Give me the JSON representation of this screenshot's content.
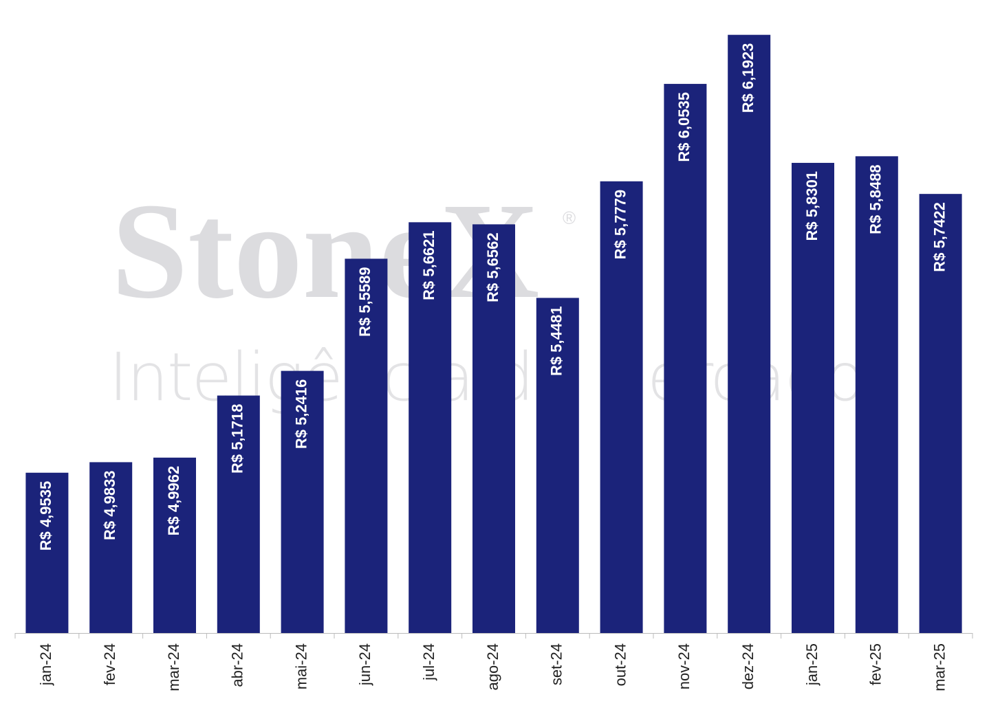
{
  "watermark": {
    "brand": "StoneX",
    "mark": "®",
    "tagline": "Inteligência de Mercado"
  },
  "chart_data": {
    "type": "bar",
    "categories": [
      "jan-24",
      "fev-24",
      "mar-24",
      "abr-24",
      "mai-24",
      "jun-24",
      "jul-24",
      "ago-24",
      "set-24",
      "out-24",
      "nov-24",
      "dez-24",
      "jan-25",
      "fev-25",
      "mar-25"
    ],
    "values": [
      4.9535,
      4.9833,
      4.9962,
      5.1718,
      5.2416,
      5.5589,
      5.6621,
      5.6562,
      5.4481,
      5.7779,
      6.0535,
      6.1923,
      5.8301,
      5.8488,
      5.7422
    ],
    "value_labels": [
      "R$ 4,9535",
      "R$ 4,9833",
      "R$ 4,9962",
      "R$ 5,1718",
      "R$ 5,2416",
      "R$ 5,5589",
      "R$ 5,6621",
      "R$ 5,6562",
      "R$ 5,4481",
      "R$ 5,7779",
      "R$ 6,0535",
      "R$ 6,1923",
      "R$ 5,8301",
      "R$ 5,8488",
      "R$ 5,7422"
    ],
    "color": "#1b237a",
    "ylim": [
      4.5,
      6.25
    ]
  }
}
